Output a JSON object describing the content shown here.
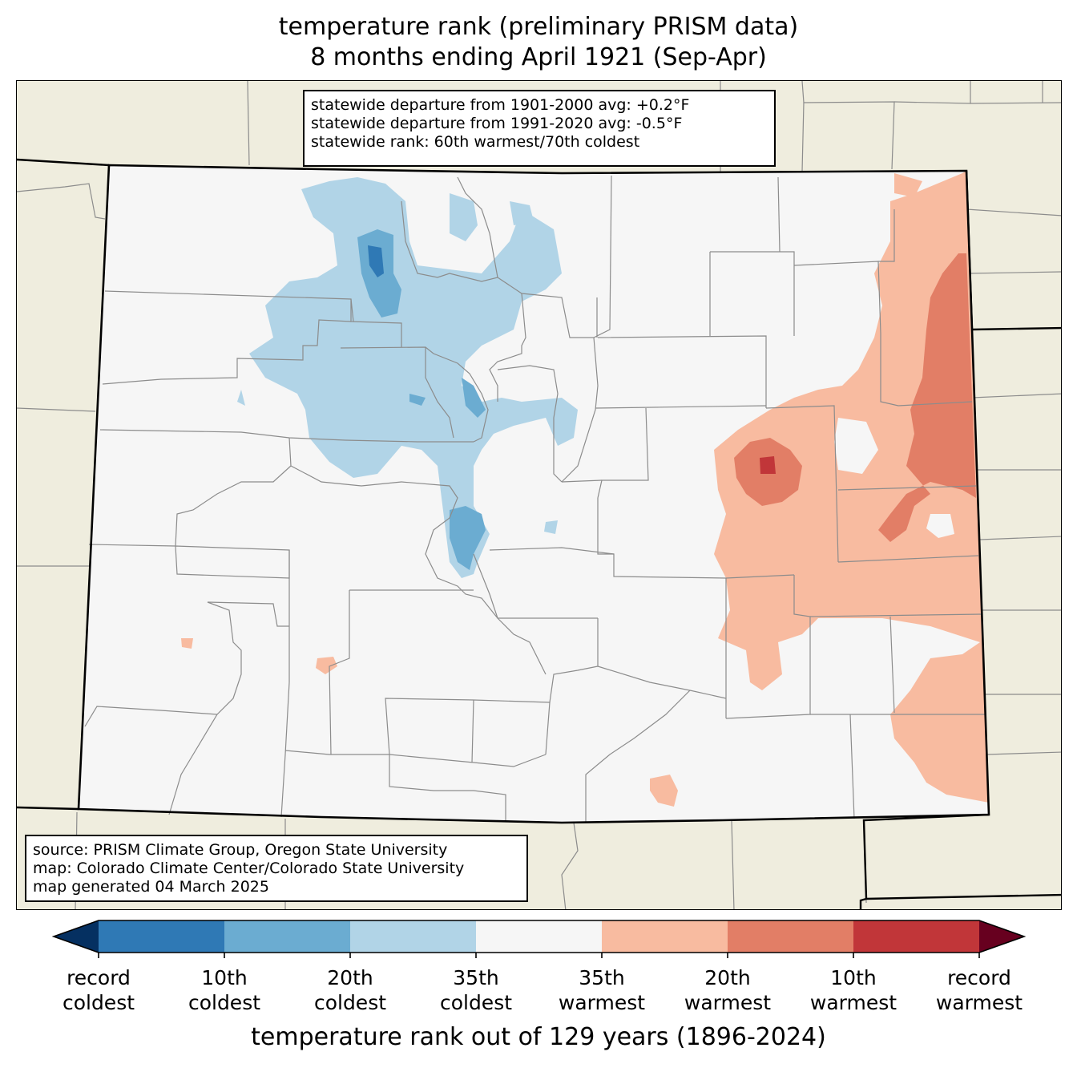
{
  "title": {
    "line1": "temperature rank (preliminary PRISM data)",
    "line2": "8 months ending April 1921 (Sep-Apr)"
  },
  "stats_box": {
    "line1": "statewide departure from 1901-2000 avg: +0.2°F",
    "line2": "statewide departure from 1991-2020 avg: -0.5°F",
    "line3": "statewide rank: 60th warmest/70th coldest"
  },
  "source_box": {
    "line1": "source: PRISM Climate Group, Oregon State University",
    "line2": "map: Colorado Climate Center/Colorado State University",
    "line3": "map generated 04 March 2025"
  },
  "colorbar": {
    "title": "temperature rank out of 129 years (1896-2024)",
    "colors": {
      "extend_low": "#053061",
      "record_to_10th_coldest": "#2f79b5",
      "10th_to_20th_coldest": "#6bacd1",
      "20th_to_35th_coldest": "#b1d4e7",
      "near_normal": "#f6f6f6",
      "35th_to_20th_warmest": "#f8bba0",
      "20th_to_10th_warmest": "#e27e66",
      "10th_to_record_warmest": "#c13639",
      "extend_high": "#67001f"
    },
    "tick_labels": [
      {
        "line1": "record",
        "line2": "coldest"
      },
      {
        "line1": "10th",
        "line2": "coldest"
      },
      {
        "line1": "20th",
        "line2": "coldest"
      },
      {
        "line1": "35th",
        "line2": "coldest"
      },
      {
        "line1": "35th",
        "line2": "warmest"
      },
      {
        "line1": "20th",
        "line2": "warmest"
      },
      {
        "line1": "10th",
        "line2": "warmest"
      },
      {
        "line1": "record",
        "line2": "warmest"
      }
    ]
  },
  "map_colors": {
    "background_land": "#efedde",
    "state_fill": "#f6f6f6",
    "county_lines": "#8c8c8c",
    "state_border": "#000000"
  }
}
